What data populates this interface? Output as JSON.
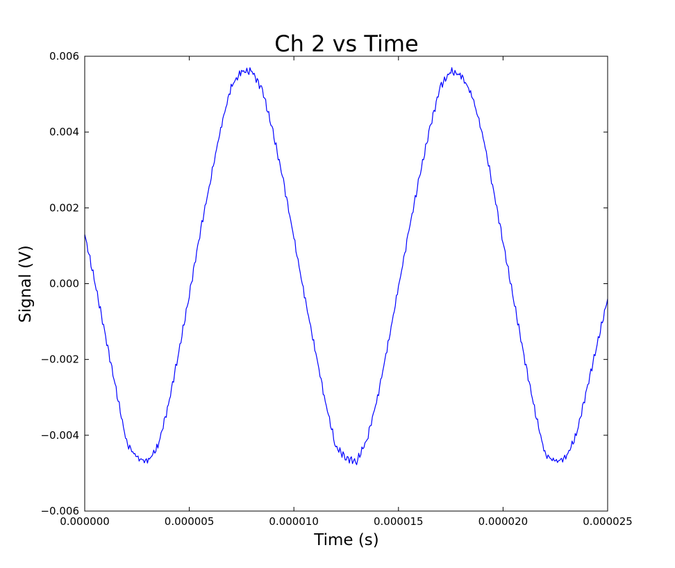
{
  "chart_data": {
    "type": "line",
    "title": "Ch  2 vs Time",
    "xlabel": "Time (s)",
    "ylabel": "Signal (V)",
    "xlim": [
      0,
      2.5e-05
    ],
    "ylim": [
      -0.006,
      0.006
    ],
    "xticks": [
      0,
      5e-06,
      1e-05,
      1.5e-05,
      2e-05,
      2.5e-05
    ],
    "xtick_labels": [
      "0.000000",
      "0.000005",
      "0.000010",
      "0.000015",
      "0.000020",
      "0.000025"
    ],
    "yticks": [
      -0.006,
      -0.004,
      -0.002,
      0,
      0.002,
      0.004,
      0.006
    ],
    "ytick_labels": [
      "−0.006",
      "−0.004",
      "−0.002",
      "0.000",
      "0.002",
      "0.004",
      "0.006"
    ],
    "grid": false,
    "line_color": "#0000ff",
    "series": [
      {
        "x": [
          0,
          5e-07,
          1e-06,
          1.5e-06,
          2e-06,
          2.5e-06,
          3e-06,
          3.5e-06,
          4e-06,
          4.5e-06,
          5e-06,
          5.5e-06,
          6e-06,
          6.5e-06,
          7e-06,
          7.5e-06,
          8e-06,
          8.5e-06,
          9e-06,
          9.5e-06,
          1e-05,
          1.05e-05,
          1.1e-05,
          1.15e-05,
          1.2e-05,
          1.25e-05,
          1.3e-05,
          1.35e-05,
          1.4e-05,
          1.45e-05,
          1.5e-05,
          1.55e-05,
          1.6e-05,
          1.65e-05,
          1.7e-05,
          1.75e-05,
          1.8e-05,
          1.85e-05,
          1.9e-05,
          1.95e-05,
          2e-05,
          2.05e-05,
          2.1e-05,
          2.15e-05,
          2.2e-05,
          2.25e-05,
          2.3e-05,
          2.35e-05,
          2.4e-05,
          2.45e-05,
          2.5e-05
        ],
        "values": [
          0.0013,
          0.0,
          -0.0014,
          -0.0028,
          -0.0042,
          -0.0046,
          -0.0047,
          -0.0043,
          -0.0032,
          -0.0018,
          -0.0003,
          0.0013,
          0.0027,
          0.0041,
          0.0052,
          0.0056,
          0.0056,
          0.0051,
          0.004,
          0.0027,
          0.0012,
          -0.0003,
          -0.0017,
          -0.0031,
          -0.0043,
          -0.0046,
          -0.0047,
          -0.0041,
          -0.003,
          -0.0016,
          -0.0001,
          0.0014,
          0.0028,
          0.0041,
          0.0052,
          0.0056,
          0.0055,
          0.005,
          0.004,
          0.0026,
          0.0011,
          -0.0004,
          -0.0019,
          -0.0033,
          -0.0045,
          -0.0047,
          -0.0046,
          -0.004,
          -0.0028,
          -0.0016,
          -0.0004
        ]
      }
    ]
  }
}
